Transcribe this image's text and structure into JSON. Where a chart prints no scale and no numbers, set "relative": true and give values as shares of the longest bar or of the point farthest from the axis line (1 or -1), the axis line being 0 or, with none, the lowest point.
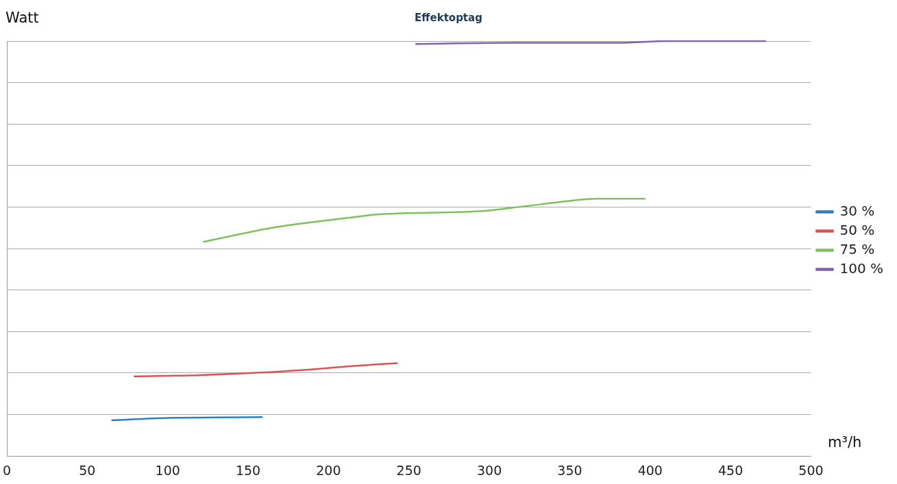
{
  "chart_data": {
    "type": "line",
    "title": "Effektoptag",
    "xlabel": "m³/h",
    "ylabel": "Watt",
    "relative": true,
    "xlim": [
      0,
      500
    ],
    "xticks": [
      0,
      50,
      100,
      150,
      200,
      250,
      300,
      350,
      400,
      450,
      500
    ],
    "grid": "y",
    "legend": "right",
    "marker": "none",
    "line_style": "solid",
    "series": [
      {
        "name": "30 %",
        "color": "#2e7fc0",
        "x": [
          65,
          100,
          130,
          159
        ],
        "values": [
          0.086,
          0.092,
          0.093,
          0.094
        ]
      },
      {
        "name": "50 %",
        "color": "#e05050",
        "x": [
          79,
          120,
          157,
          193,
          215,
          243
        ],
        "values": [
          0.192,
          0.195,
          0.201,
          0.21,
          0.217,
          0.224
        ]
      },
      {
        "name": "75 %",
        "color": "#7cc15a",
        "x": [
          122,
          168,
          212,
          233,
          294,
          320,
          350,
          367,
          397
        ],
        "values": [
          0.516,
          0.552,
          0.574,
          0.583,
          0.59,
          0.601,
          0.615,
          0.62,
          0.62
        ]
      },
      {
        "name": "100 %",
        "color": "#8062b0",
        "x": [
          254,
          315,
          380,
          411,
          472
        ],
        "values": [
          0.993,
          0.996,
          0.996,
          1,
          1
        ]
      }
    ]
  }
}
